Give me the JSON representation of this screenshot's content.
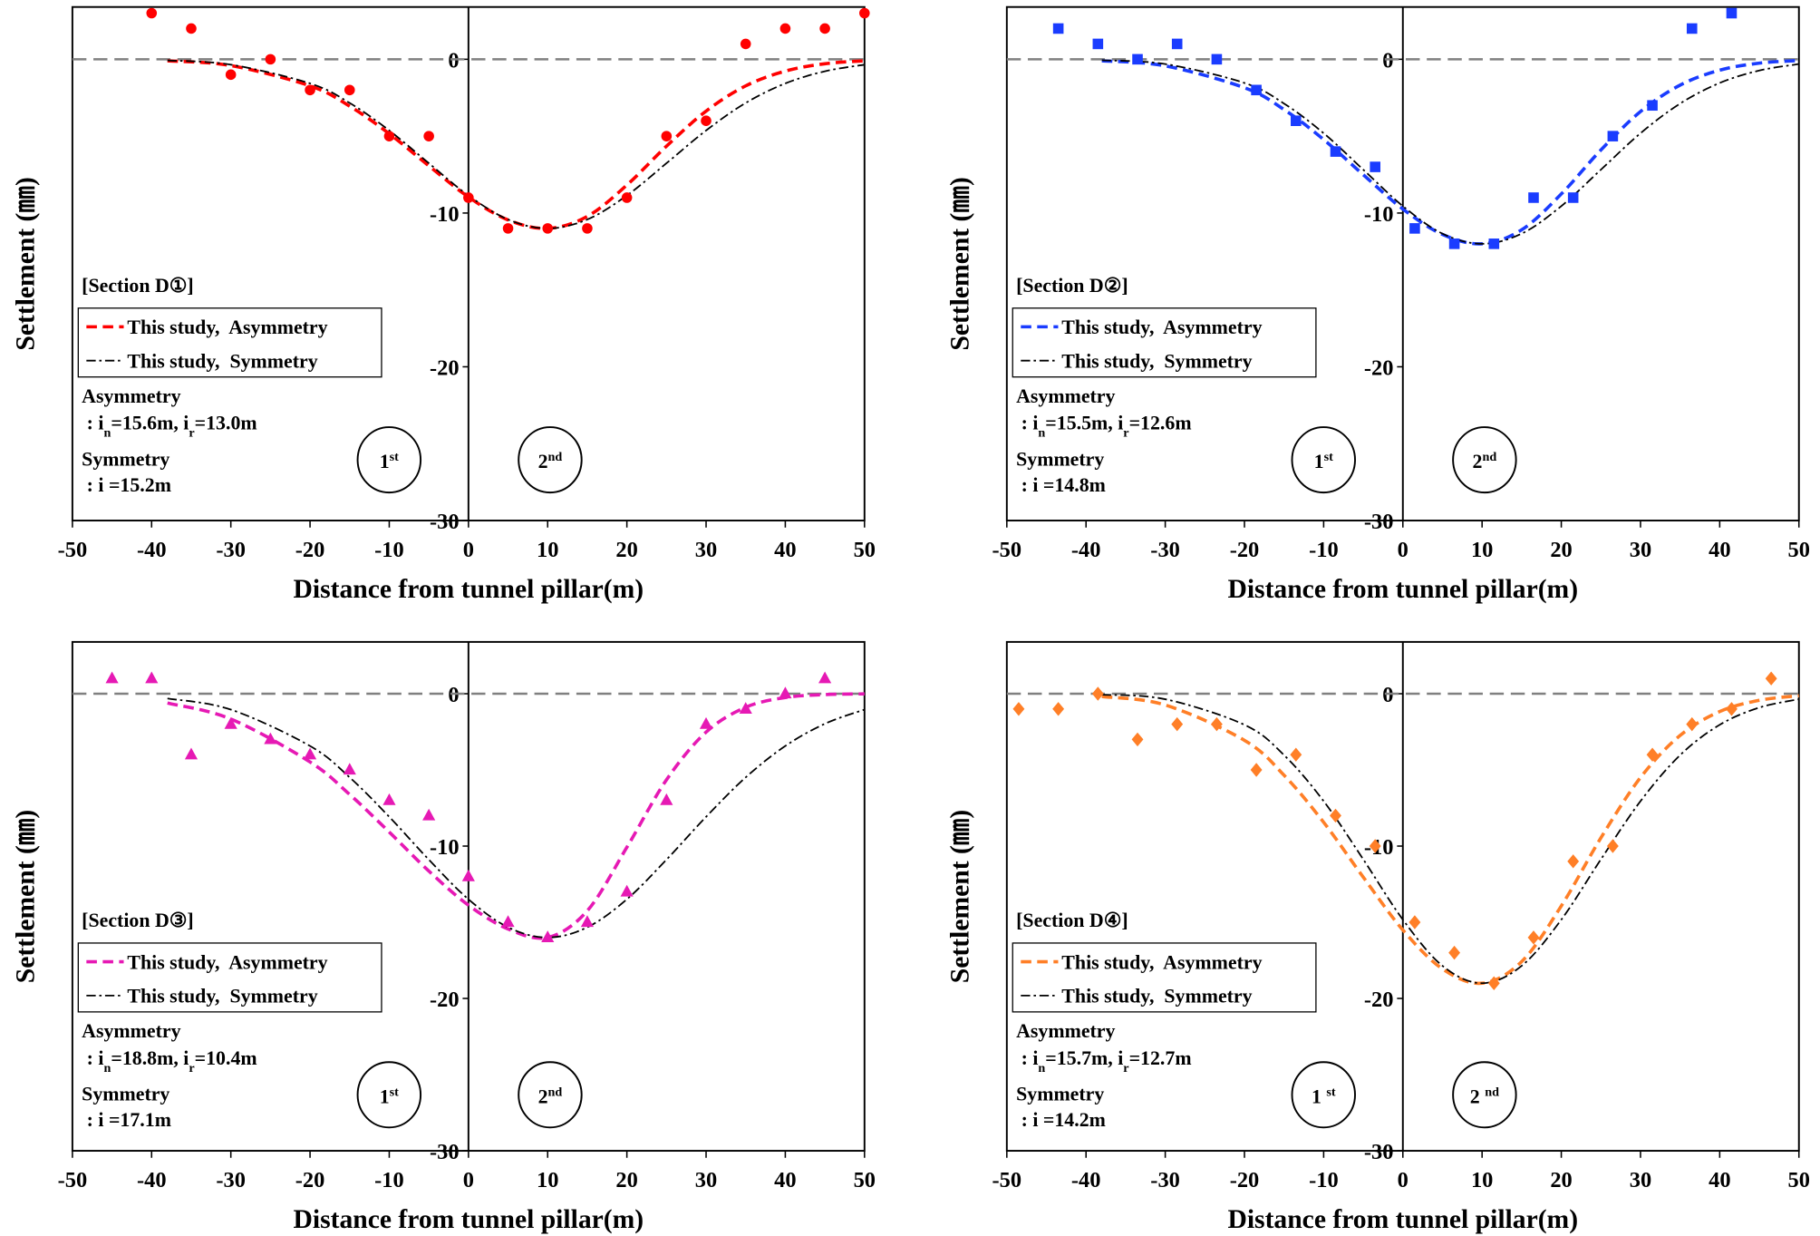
{
  "charts": [
    {
      "type": "scatter",
      "section": "[Section D①]",
      "xlabel": "Distance from tunnel pillar(m)",
      "ylabel": "Settlement (㎜)",
      "xlim": [
        -50,
        50
      ],
      "ylim": [
        -30,
        3.4
      ],
      "xticks": [
        -50,
        -40,
        -30,
        -20,
        -10,
        0,
        10,
        20,
        30,
        40,
        50
      ],
      "yticks": [
        -30,
        -20,
        -10,
        0
      ],
      "marker": "circle",
      "color": "#ff0000",
      "x": [
        -40,
        -35,
        -30,
        -25,
        -20,
        -15,
        -10,
        -5,
        0,
        5,
        10,
        15,
        20,
        25,
        30,
        35,
        40,
        45,
        50
      ],
      "values": [
        3,
        2,
        -1,
        0,
        -2,
        -2,
        -5,
        -5,
        -9,
        -11,
        -11,
        -11,
        -9,
        -5,
        -4,
        1,
        2,
        2,
        3
      ],
      "series": [
        {
          "name": "This study,  Asymmetry",
          "color": "#ff0000",
          "dash": "dashed",
          "x": [
            -38,
            -30,
            -20,
            -15,
            -10,
            -5,
            0,
            5,
            10,
            15,
            20,
            25,
            30,
            35,
            40,
            45,
            50
          ],
          "values": [
            -0.1,
            -0.41,
            -1.73,
            -3.05,
            -4.84,
            -6.93,
            -8.96,
            -10.45,
            -11,
            -10.22,
            -8.18,
            -5.65,
            -3.37,
            -1.73,
            -0.77,
            -0.29,
            -0.1
          ]
        },
        {
          "name": "This study,  Symmetry",
          "color": "#000000",
          "dash": "dashdot",
          "x": [
            -38,
            -30,
            -20,
            -15,
            -10,
            -5,
            0,
            5,
            10,
            15,
            20,
            25,
            30,
            35,
            40,
            45,
            50
          ],
          "values": [
            -0.07,
            -0.35,
            -1.57,
            -2.84,
            -4.63,
            -6.76,
            -8.86,
            -10.42,
            -11,
            -10.42,
            -8.86,
            -6.76,
            -4.63,
            -2.84,
            -1.57,
            -0.78,
            -0.35
          ]
        }
      ],
      "asymmetry": {
        "title": "Asymmetry",
        "params": [
          " : i",
          "n",
          "=15.6m, i",
          "r",
          "=13.0m"
        ]
      },
      "symmetry": {
        "title": "Symmetry",
        "params": " : i =15.2m"
      },
      "drives": [
        [
          "1",
          "st"
        ],
        [
          "2",
          "nd"
        ]
      ]
    },
    {
      "type": "scatter",
      "section": "[Section D②]",
      "xlabel": "Distance from tunnel pillar(m)",
      "ylabel": "Settlement (㎜)",
      "xlim": [
        -50,
        50
      ],
      "ylim": [
        -30,
        3.4
      ],
      "xticks": [
        -50,
        -40,
        -30,
        -20,
        -10,
        0,
        10,
        20,
        30,
        40,
        50
      ],
      "yticks": [
        -30,
        -20,
        -10,
        0
      ],
      "marker": "square",
      "color": "#1a3cff",
      "x": [
        -43.5,
        -38.5,
        -33.5,
        -28.5,
        -23.5,
        -18.5,
        -13.5,
        -8.5,
        -3.5,
        1.5,
        6.5,
        11.5,
        16.5,
        21.5,
        26.5,
        31.5,
        36.5,
        41.5
      ],
      "values": [
        2,
        1,
        0,
        1,
        0,
        -2,
        -4,
        -6,
        -7,
        -11,
        -12,
        -12,
        -9,
        -9,
        -5,
        -3,
        2,
        3
      ],
      "series": [
        {
          "name": "This study,  Asymmetry",
          "color": "#1a3cff",
          "dash": "dashed",
          "x": [
            -38,
            -30,
            -20,
            -15,
            -10,
            -5,
            0,
            5,
            10,
            15,
            20,
            25,
            30,
            35,
            40,
            45,
            50
          ],
          "values": [
            -0.1,
            -0.43,
            -1.85,
            -3.27,
            -5.22,
            -7.51,
            -9.74,
            -11.39,
            -12,
            -11.09,
            -8.76,
            -5.9,
            -3.4,
            -1.68,
            -0.71,
            -0.25,
            -0.08
          ]
        },
        {
          "name": "This study,  Symmetry",
          "color": "#000000",
          "dash": "dashdot",
          "x": [
            -38,
            -30,
            -20,
            -15,
            -10,
            -5,
            0,
            5,
            10,
            15,
            20,
            25,
            30,
            35,
            40,
            45,
            50
          ],
          "values": [
            -0.06,
            -0.31,
            -1.54,
            -2.88,
            -4.81,
            -7.18,
            -9.55,
            -11.34,
            -12,
            -11.34,
            -9.55,
            -7.18,
            -4.81,
            -2.88,
            -1.54,
            -0.73,
            -0.31
          ]
        }
      ],
      "asymmetry": {
        "title": "Asymmetry",
        "params": [
          " : i",
          "n",
          "=15.5m, i",
          "r",
          "=12.6m"
        ]
      },
      "symmetry": {
        "title": "Symmetry",
        "params": " : i =14.8m"
      },
      "drives": [
        [
          "1",
          "st"
        ],
        [
          "2",
          "nd"
        ]
      ]
    },
    {
      "type": "scatter",
      "section": "[Section D③]",
      "xlabel": "Distance from tunnel pillar(m)",
      "ylabel": "Settlement (㎜)",
      "xlim": [
        -50,
        50
      ],
      "ylim": [
        -30,
        3.4
      ],
      "xticks": [
        -50,
        -40,
        -30,
        -20,
        -10,
        0,
        10,
        20,
        30,
        40,
        50
      ],
      "yticks": [
        -30,
        -20,
        -10,
        0
      ],
      "marker": "triangle",
      "color": "#e619b4",
      "x": [
        -45,
        -40,
        -35,
        -30,
        -25,
        -20,
        -15,
        -10,
        -5,
        0,
        5,
        10,
        15,
        20,
        25,
        30,
        35,
        40,
        45
      ],
      "values": [
        1,
        1,
        -4,
        -2,
        -3,
        -4,
        -5,
        -7,
        -8,
        -12,
        -15,
        -16,
        -15,
        -13,
        -7,
        -2,
        -1,
        0,
        1
      ],
      "series": [
        {
          "name": "This study,  Asymmetry",
          "color": "#e619b4",
          "dash": "dashed",
          "x": [
            -38,
            -30,
            -20,
            -15,
            -10,
            -5,
            0,
            5,
            10,
            15,
            20,
            25,
            30,
            35,
            40,
            45,
            50
          ],
          "values": [
            -0.61,
            -1.66,
            -4.48,
            -6.61,
            -9.08,
            -11.64,
            -13.88,
            -15.44,
            -16,
            -14.25,
            -10.08,
            -5.65,
            -2.52,
            -0.89,
            -0.25,
            -0.06,
            -0.01
          ]
        },
        {
          "name": "This study,  Symmetry",
          "color": "#000000",
          "dash": "dashdot",
          "x": [
            -38,
            -30,
            -20,
            -15,
            -10,
            -5,
            0,
            5,
            10,
            15,
            20,
            25,
            30,
            35,
            40,
            45,
            50
          ],
          "values": [
            -0.31,
            -1.04,
            -3.43,
            -5.49,
            -8.08,
            -10.89,
            -13.49,
            -15.33,
            -16,
            -15.33,
            -13.49,
            -10.89,
            -8.08,
            -5.49,
            -3.43,
            -1.97,
            -1.04
          ]
        }
      ],
      "asymmetry": {
        "title": "Asymmetry",
        "params": [
          " : i",
          "n",
          "=18.8m, i",
          "r",
          "=10.4m"
        ]
      },
      "symmetry": {
        "title": "Symmetry",
        "params": " : i =17.1m"
      },
      "drives": [
        [
          "1",
          "st"
        ],
        [
          "2",
          "nd"
        ]
      ]
    },
    {
      "type": "scatter",
      "section": "[Section D④]",
      "xlabel": "Distance from tunnel pillar(m)",
      "ylabel": "Settlement (㎜)",
      "xlim": [
        -50,
        50
      ],
      "ylim": [
        -30,
        3.4
      ],
      "xticks": [
        -50,
        -40,
        -30,
        -20,
        -10,
        0,
        10,
        20,
        30,
        40,
        50
      ],
      "yticks": [
        -30,
        -20,
        -10,
        0
      ],
      "marker": "diamond",
      "color": "#ff7f27",
      "x": [
        -48.5,
        -43.5,
        -38.5,
        -33.5,
        -28.5,
        -23.5,
        -18.5,
        -13.5,
        -8.5,
        -3.5,
        1.5,
        6.5,
        11.5,
        16.5,
        21.5,
        26.5,
        31.5,
        36.5,
        41.5,
        46.5
      ],
      "values": [
        -1,
        -1,
        0,
        -3,
        -2,
        -2,
        -5,
        -4,
        -8,
        -10,
        -15,
        -17,
        -19,
        -16,
        -11,
        -10,
        -4,
        -2,
        -1,
        1
      ],
      "series": [
        {
          "name": "This study,  Asymmetry",
          "color": "#ff7f27",
          "dash": "dashed",
          "x": [
            -38,
            -30,
            -20,
            -15,
            -10,
            -5,
            0,
            5,
            10,
            15,
            20,
            25,
            30,
            35,
            40,
            45,
            50
          ],
          "values": [
            -0.18,
            -0.74,
            -3.06,
            -5.35,
            -8.44,
            -12.04,
            -15.51,
            -18.06,
            -19,
            -17.58,
            -13.93,
            -9.46,
            -5.5,
            -2.74,
            -1.17,
            -0.43,
            -0.13
          ]
        },
        {
          "name": "This study,  Symmetry",
          "color": "#000000",
          "dash": "dashdot",
          "x": [
            -38,
            -30,
            -20,
            -15,
            -10,
            -5,
            0,
            5,
            10,
            15,
            20,
            25,
            30,
            35,
            40,
            45,
            50
          ],
          "values": [
            -0.06,
            -0.36,
            -2.04,
            -4.03,
            -7.05,
            -10.87,
            -14.83,
            -17.86,
            -19,
            -17.86,
            -14.83,
            -10.87,
            -7.05,
            -4.03,
            -2.04,
            -0.91,
            -0.36
          ]
        }
      ],
      "asymmetry": {
        "title": "Asymmetry",
        "params": [
          " : i",
          "n",
          "=15.7m, i",
          "r",
          "=12.7m"
        ]
      },
      "symmetry": {
        "title": "Symmetry",
        "params": " : i =14.2m"
      },
      "drives": [
        [
          "1 ",
          "st"
        ],
        [
          "2 ",
          "nd"
        ]
      ]
    }
  ]
}
